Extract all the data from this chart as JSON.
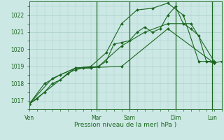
{
  "background_color": "#cce8e4",
  "grid_color": "#aacfcc",
  "line_color": "#1a6620",
  "ylabel_ticks": [
    1017,
    1018,
    1019,
    1020,
    1021,
    1022
  ],
  "xlabel": "Pression niveau de la mer( hPa )",
  "day_labels": [
    "Ven",
    "Mar",
    "Sam",
    "Dim",
    "Lun"
  ],
  "day_positions": [
    0.0,
    0.35,
    0.52,
    0.76,
    0.95
  ],
  "xlim": [
    0.0,
    1.0
  ],
  "ylim": [
    1016.5,
    1022.8
  ],
  "series1_x": [
    0.0,
    0.04,
    0.08,
    0.12,
    0.16,
    0.2,
    0.24,
    0.28,
    0.32,
    0.36,
    0.4,
    0.44,
    0.48,
    0.52,
    0.56,
    0.6,
    0.64,
    0.68,
    0.72,
    0.76,
    0.8,
    0.84,
    0.88,
    0.92,
    0.96,
    1.0
  ],
  "series1_y": [
    1016.8,
    1017.1,
    1017.5,
    1018.0,
    1018.2,
    1018.6,
    1018.8,
    1018.9,
    1018.9,
    1019.0,
    1019.3,
    1020.3,
    1020.4,
    1020.5,
    1021.0,
    1021.3,
    1021.0,
    1021.2,
    1022.0,
    1022.5,
    1021.5,
    1021.2,
    1020.8,
    1019.3,
    1019.2,
    1019.3
  ],
  "series2_x": [
    0.0,
    0.08,
    0.16,
    0.24,
    0.32,
    0.4,
    0.48,
    0.56,
    0.64,
    0.72,
    0.8,
    0.88,
    0.96
  ],
  "series2_y": [
    1016.8,
    1018.0,
    1018.5,
    1018.9,
    1019.0,
    1019.8,
    1021.5,
    1022.3,
    1022.4,
    1022.7,
    1022.0,
    1019.3,
    1019.3
  ],
  "series3_x": [
    0.0,
    0.12,
    0.24,
    0.36,
    0.48,
    0.6,
    0.72,
    0.84,
    0.96
  ],
  "series3_y": [
    1016.8,
    1018.3,
    1018.9,
    1019.0,
    1020.2,
    1021.0,
    1021.5,
    1021.5,
    1019.3
  ],
  "series4_x": [
    0.0,
    0.24,
    0.48,
    0.72,
    0.96
  ],
  "series4_y": [
    1016.8,
    1018.9,
    1019.0,
    1021.2,
    1019.2
  ]
}
